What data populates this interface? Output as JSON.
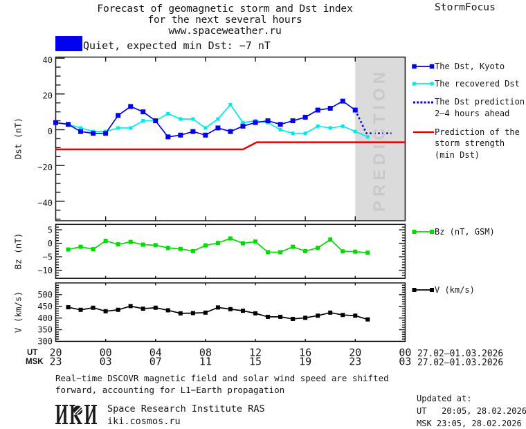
{
  "title": {
    "line1": "Forecast of geomagnetic storm and Dst index",
    "line2": "for the next several hours",
    "line3": "www.spaceweather.ru"
  },
  "brand": "StormFocus",
  "status": {
    "swatch_color": "#0202ee",
    "label": "Quiet, expected min Dst: −7 nT"
  },
  "prediction_band": {
    "label": "PREDICTION",
    "fill": "#dbdbdb",
    "text_color": "#c9c9c9",
    "from_hour": 24,
    "to_hour": 28
  },
  "legend": {
    "items": [
      {
        "id": "kyoto",
        "swatch": "line-markers",
        "color": "#0202ee",
        "marker_size": 6.5,
        "lines": [
          "The Dst, Kyoto"
        ]
      },
      {
        "id": "recovered",
        "swatch": "line-markers",
        "color": "#00eaea",
        "marker_size": 5,
        "lines": [
          "The recovered Dst"
        ]
      },
      {
        "id": "prediction",
        "swatch": "dotted",
        "color": "#0202ee",
        "lines": [
          "The Dst prediction",
          "2–4 hours ahead"
        ]
      },
      {
        "id": "storm-strength",
        "swatch": "line",
        "color": "#e80000",
        "lines": [
          "Prediction of the",
          "storm strength",
          "(min Dst)"
        ]
      },
      {
        "id": "bz",
        "swatch": "line-markers",
        "color": "#00dc00",
        "marker_size": 6,
        "lines": [
          "Bz (nT, GSM)"
        ]
      },
      {
        "id": "v",
        "swatch": "line-markers",
        "color": "#000000",
        "marker_size": 6,
        "lines": [
          "V (km/s)"
        ]
      }
    ]
  },
  "xaxis": {
    "ut_label": "UT",
    "msk_label": "MSK",
    "tick_hours": [
      0,
      4,
      8,
      12,
      16,
      20,
      24,
      28
    ],
    "ut_ticks": [
      "20",
      "00",
      "04",
      "08",
      "12",
      "16",
      "20",
      "00"
    ],
    "msk_ticks": [
      "23",
      "03",
      "07",
      "11",
      "15",
      "19",
      "23",
      "03"
    ],
    "ut_date": "27.02–01.03.2026",
    "msk_date": "27.02–01.03.2026"
  },
  "chart_data": [
    {
      "type": "line",
      "panel": "dst",
      "ylabel": "Dst (nT)",
      "yticks": [
        40,
        20,
        0,
        -20,
        -40
      ],
      "ytick_labels": [
        "40",
        "20",
        "0",
        "−20",
        "−40"
      ],
      "minor_step": 5,
      "ylim": [
        -51,
        40.6
      ],
      "xlim_hours": [
        0,
        28
      ],
      "grid": false,
      "legend_position": "right",
      "series": [
        {
          "name": "The Dst, Kyoto",
          "color": "#0202ee",
          "style": "solid",
          "marker": "square",
          "marker_size": 7,
          "x_hours": [
            0,
            1,
            2,
            3,
            4,
            5,
            6,
            7,
            8,
            9,
            10,
            11,
            12,
            13,
            14,
            15,
            16,
            17,
            18,
            19,
            20,
            21,
            22,
            23,
            24
          ],
          "values": [
            4,
            3,
            -1,
            -2,
            -2,
            8,
            13,
            10,
            5,
            -4,
            -3,
            -1,
            -3,
            1,
            -1,
            2,
            4,
            5,
            3,
            5,
            7,
            11,
            12,
            16,
            11
          ]
        },
        {
          "name": "The recovered Dst",
          "color": "#00eaea",
          "style": "solid",
          "marker": "square",
          "marker_size": 5,
          "x_hours": [
            0,
            1,
            2,
            3,
            4,
            5,
            6,
            7,
            8,
            9,
            10,
            11,
            12,
            13,
            14,
            15,
            16,
            17,
            18,
            19,
            20,
            21,
            22,
            23,
            24,
            25
          ],
          "values": [
            4,
            3,
            1,
            -1,
            -1,
            1,
            1,
            5,
            5,
            9,
            6,
            6,
            1,
            6,
            14,
            4,
            5,
            4,
            0,
            -2,
            -2,
            2,
            1,
            2,
            -1,
            -4
          ]
        },
        {
          "name": "The Dst prediction 2–4 hours ahead",
          "color": "#0202ee",
          "style": "dotted",
          "marker": "none",
          "x_hours": [
            24,
            24.9,
            26.9
          ],
          "values": [
            11,
            -2,
            -2
          ]
        },
        {
          "name": "Prediction of the storm strength (min Dst)",
          "color": "#e80000",
          "style": "solid",
          "marker": "none",
          "x_hours": [
            0,
            15,
            16.1,
            28
          ],
          "values": [
            -11,
            -11,
            -7,
            -7
          ]
        }
      ]
    },
    {
      "type": "line",
      "panel": "bz",
      "ylabel": "Bz (nT)",
      "yticks": [
        5,
        0,
        -5,
        -10
      ],
      "ytick_labels": [
        "5",
        "0",
        "−5",
        "−10"
      ],
      "minor_step": 1,
      "ylim": [
        -13,
        7
      ],
      "xlim_hours": [
        0,
        28
      ],
      "grid": false,
      "legend_position": "right",
      "series": [
        {
          "name": "Bz (nT, GSM)",
          "color": "#00dc00",
          "style": "solid",
          "marker": "square",
          "marker_size": 6,
          "x_hours": [
            1,
            2,
            3,
            4,
            5,
            6,
            7,
            8,
            9,
            10,
            11,
            12,
            13,
            14,
            15,
            16,
            17,
            18,
            19,
            20,
            21,
            22,
            23,
            24,
            25
          ],
          "values": [
            -2.3,
            -1.3,
            -2.2,
            0.9,
            -0.4,
            0.5,
            -0.5,
            -0.7,
            -1.7,
            -2.1,
            -2.9,
            -0.8,
            0.1,
            1.8,
            0.0,
            0.6,
            -3.3,
            -3.3,
            -1.3,
            -2.9,
            -1.7,
            1.4,
            -3.0,
            -3.1,
            -3.5
          ]
        }
      ]
    },
    {
      "type": "line",
      "panel": "v",
      "ylabel": "V (km/s)",
      "yticks": [
        500,
        450,
        400,
        350,
        300
      ],
      "ytick_labels": [
        "500",
        "450",
        "400",
        "350",
        "300"
      ],
      "minor_step": 10,
      "ylim": [
        300,
        550
      ],
      "xlim_hours": [
        0,
        28
      ],
      "grid": false,
      "legend_position": "right",
      "series": [
        {
          "name": "V (km/s)",
          "color": "#000000",
          "style": "solid",
          "marker": "square",
          "marker_size": 6,
          "x_hours": [
            1,
            2,
            3,
            4,
            5,
            6,
            7,
            8,
            9,
            10,
            11,
            12,
            13,
            14,
            15,
            16,
            17,
            18,
            19,
            20,
            21,
            22,
            23,
            24,
            25
          ],
          "values": [
            446,
            435,
            444,
            429,
            435,
            451,
            440,
            444,
            433,
            420,
            421,
            423,
            445,
            438,
            431,
            420,
            405,
            405,
            396,
            401,
            410,
            423,
            413,
            410,
            394
          ]
        }
      ]
    }
  ],
  "footer": {
    "note_line1": "Real−time DSCOVR magnetic field and solar wind speed are shifted",
    "note_line2": "forward, accounting for L1−Earth propagation",
    "institute": "Space Research Institute RAS",
    "website": "iki.cosmos.ru",
    "logo_text": "ИКИ",
    "updated_title": "Updated at:",
    "updated_ut": "UT   20:05, 28.02.2026",
    "updated_msk": "MSK 23:05, 28.02.2026"
  }
}
